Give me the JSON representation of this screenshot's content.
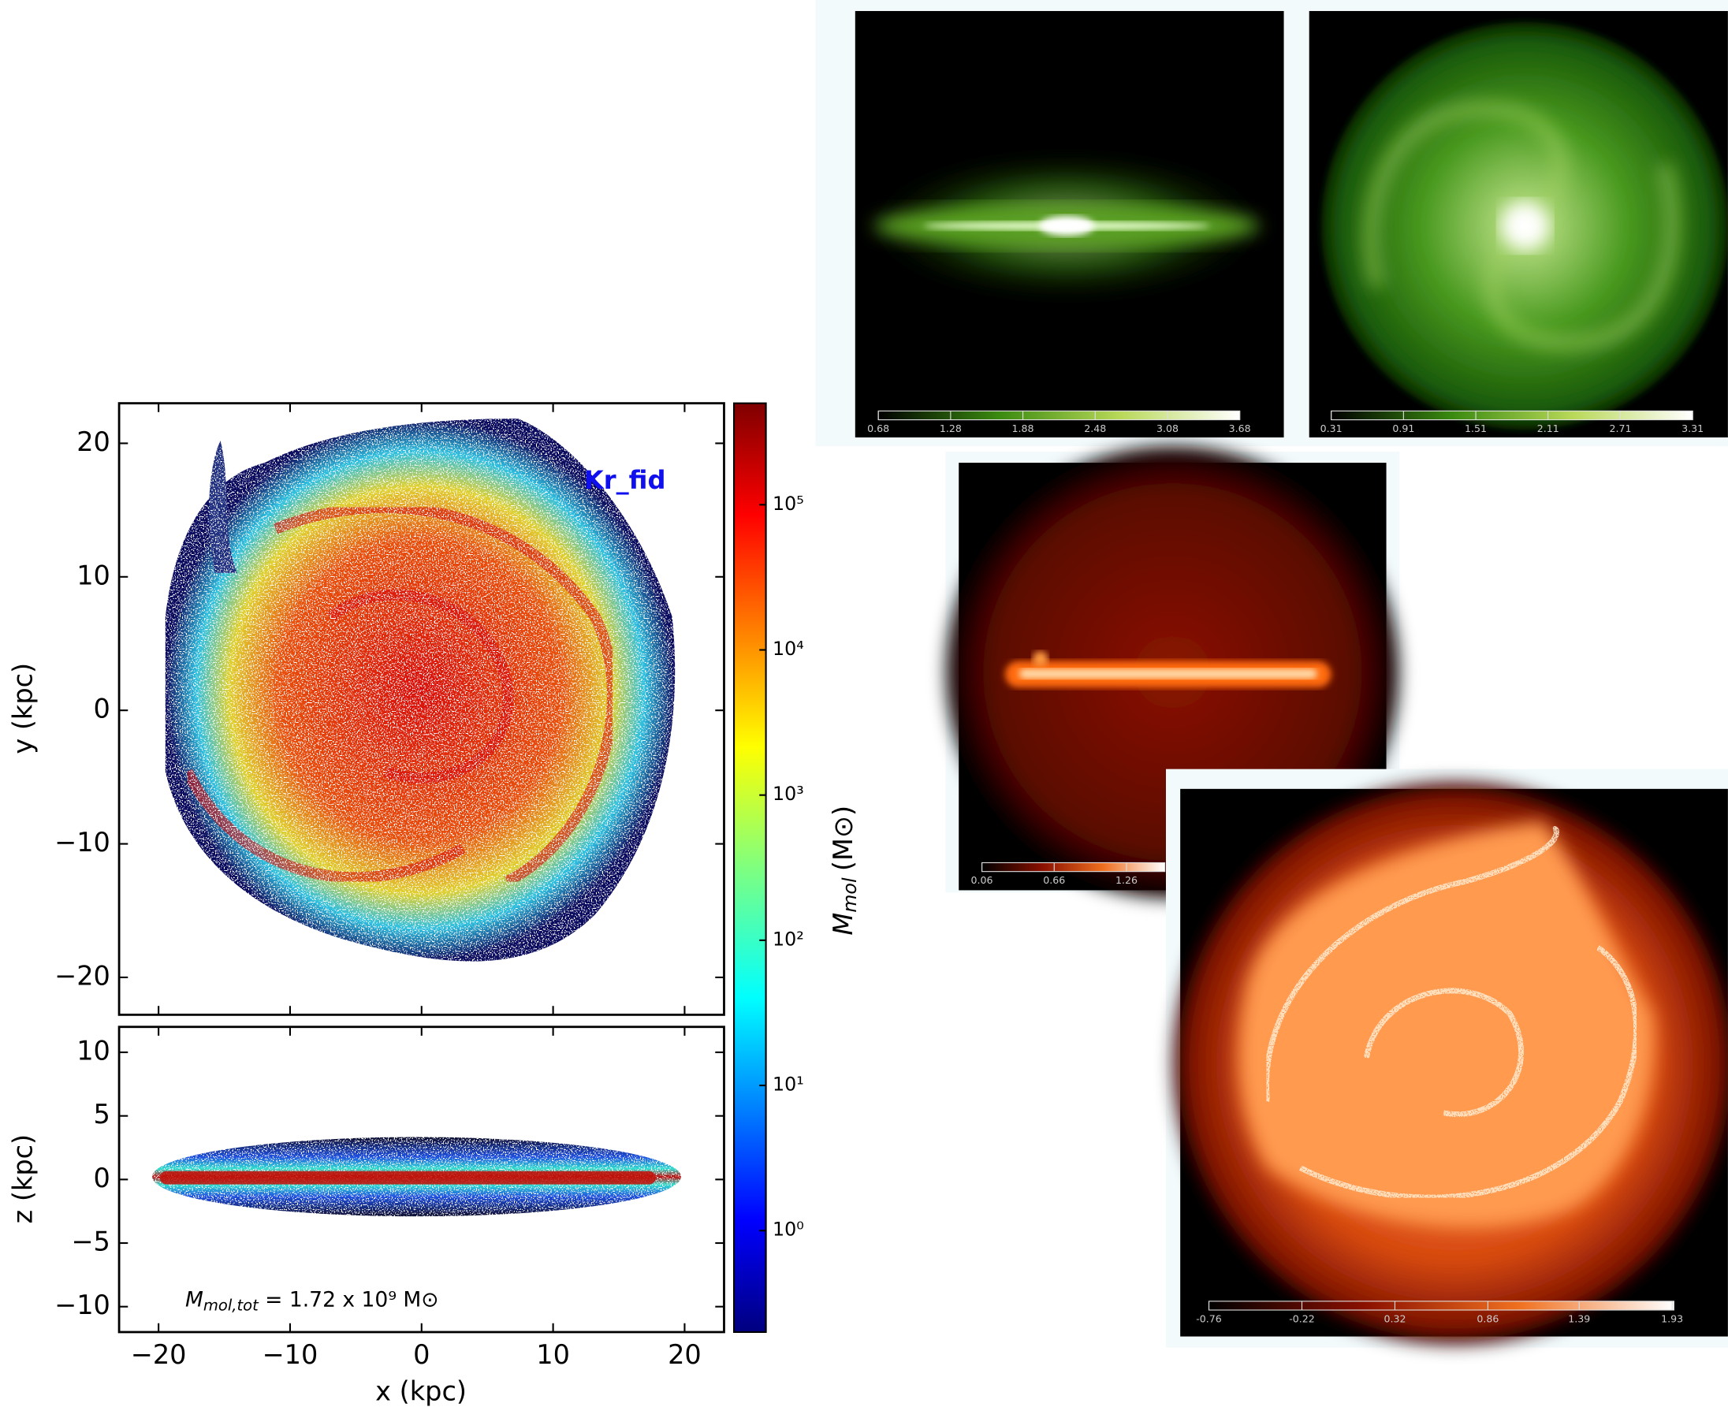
{
  "chart_data": [
    {
      "type": "scatter",
      "ylim": [
        -22.8,
        23
      ],
      "yticks": [
        {
          "value": -20,
          "label": "−20"
        },
        {
          "value": -10,
          "label": "−10"
        },
        0,
        10,
        20
      ],
      "ylabel": "y (kpc)",
      "annotation": "Kr_fid",
      "annotation_color": "#1010ee"
    },
    {
      "type": "scatter",
      "xlim": [
        -23,
        23
      ],
      "ylim": [
        -12,
        12
      ],
      "xticks": [
        {
          "value": -20,
          "label": "−20"
        },
        {
          "value": -10,
          "label": "−10"
        },
        0,
        10,
        20
      ],
      "yticks": [
        {
          "value": -10,
          "label": "−10"
        },
        {
          "value": -5,
          "label": "−5"
        },
        0,
        5,
        10
      ],
      "xlabel": "x (kpc)",
      "ylabel": "z (kpc)",
      "annotation": {
        "symbol": "M",
        "subscript": "mol,tot",
        "text": "= 1.72 x 10⁹ M⊙"
      }
    },
    {
      "type": "colorbar",
      "log_scale": true,
      "clim": [
        0.2,
        500000
      ],
      "colormap": "jet",
      "ticks": [
        {
          "value": 1,
          "label": "10⁰"
        },
        {
          "value": 10,
          "label": "10¹"
        },
        {
          "value": 100,
          "label": "10²"
        },
        {
          "value": 1000,
          "label": "10³"
        },
        {
          "value": 10000,
          "label": "10⁴"
        },
        {
          "value": 100000,
          "label": "10⁵"
        }
      ],
      "label": {
        "symbol": "M",
        "subscript": "mol",
        "unit": "(M⊙)"
      }
    }
  ],
  "images": [
    {
      "ticks": [
        0.68,
        1.28,
        1.88,
        2.48,
        3.08,
        3.68
      ],
      "colormap": [
        "#000000",
        "#3a8a10",
        "#b8d858",
        "#ffffff"
      ]
    },
    {
      "ticks": [
        0.31,
        0.91,
        1.51,
        2.11,
        2.71,
        3.31
      ],
      "colormap": [
        "#000000",
        "#3a8a10",
        "#b8d858",
        "#ffffff"
      ]
    },
    {
      "ticks": [
        0.06,
        0.66,
        1.26
      ],
      "colormap": [
        "#000000",
        "#8a1000",
        "#f07020",
        "#ffffff"
      ]
    },
    {
      "ticks": [
        -0.76,
        -0.22,
        0.32,
        0.86,
        1.39,
        1.93
      ],
      "colormap": [
        "#000000",
        "#8a1000",
        "#f07020",
        "#ffffff"
      ]
    }
  ]
}
